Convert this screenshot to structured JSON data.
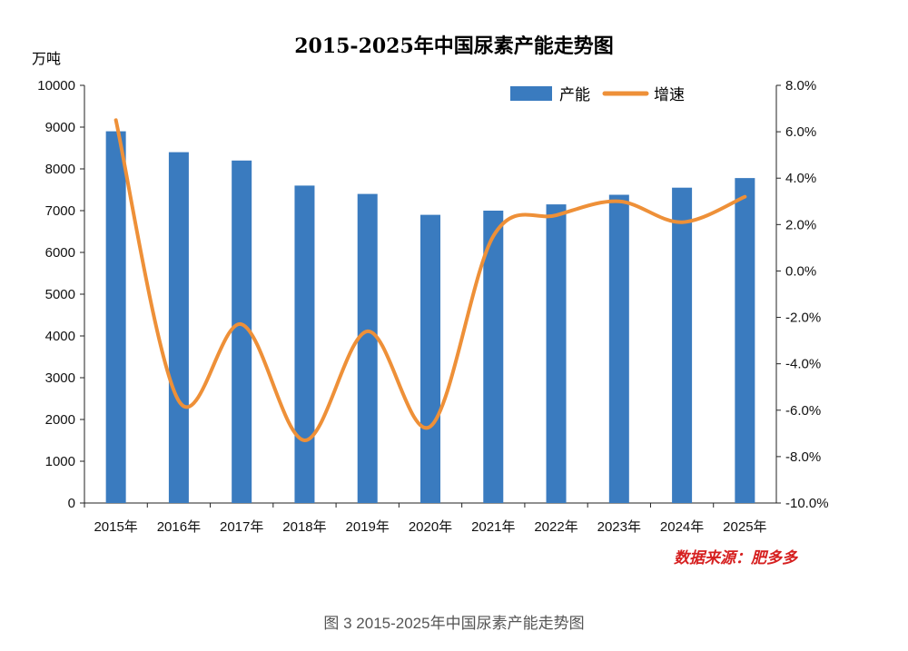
{
  "chart_data": {
    "type": "bar+line",
    "title": "2015-2025年中国尿素产能走势图",
    "ylabel_left": "万吨",
    "categories": [
      "2015年",
      "2016年",
      "2017年",
      "2018年",
      "2019年",
      "2020年",
      "2021年",
      "2022年",
      "2023年",
      "2024年",
      "2025年"
    ],
    "series": [
      {
        "name": "产能",
        "type": "bar",
        "axis": "left",
        "color": "#3a7bbf",
        "values": [
          8900,
          8400,
          8200,
          7600,
          7400,
          6900,
          7000,
          7150,
          7380,
          7550,
          7780
        ]
      },
      {
        "name": "增速",
        "type": "line",
        "axis": "right",
        "color": "#ee9038",
        "values": [
          6.5,
          -5.6,
          -2.3,
          -7.3,
          -2.6,
          -6.7,
          1.5,
          2.4,
          3.0,
          2.1,
          3.2
        ]
      }
    ],
    "ylim_left": [
      0,
      10000
    ],
    "yticks_left": [
      "0",
      "1000",
      "2000",
      "3000",
      "4000",
      "5000",
      "6000",
      "7000",
      "8000",
      "9000",
      "10000"
    ],
    "ylim_right": [
      -10,
      8
    ],
    "yticks_right": [
      "-10.0%",
      "-8.0%",
      "-6.0%",
      "-4.0%",
      "-2.0%",
      "0.0%",
      "2.0%",
      "4.0%",
      "6.0%",
      "8.0%"
    ],
    "legend": "top-right",
    "grid": false
  },
  "source": "数据来源：肥多多",
  "caption": "图 3   2015-2025年中国尿素产能走势图"
}
